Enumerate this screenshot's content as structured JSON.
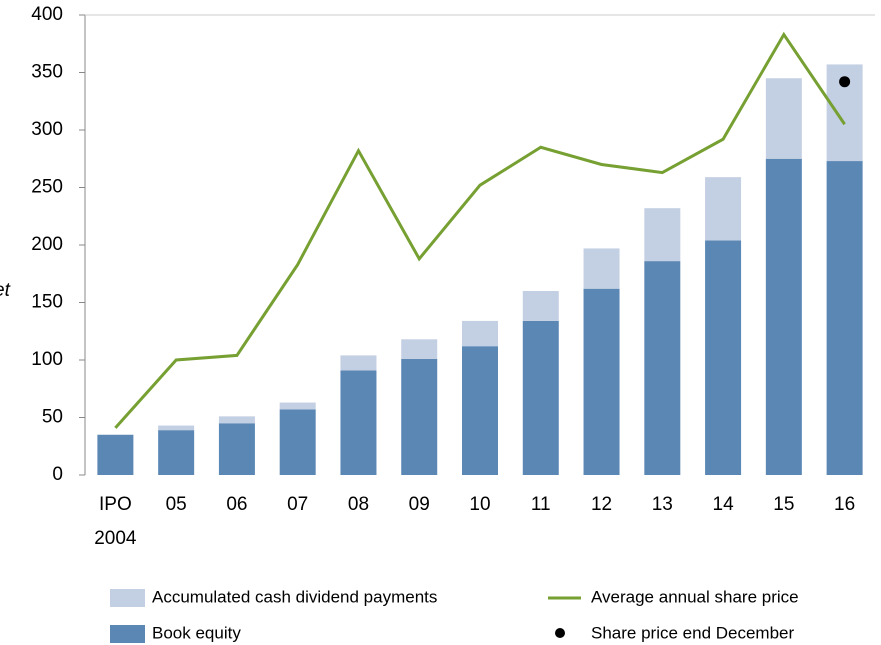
{
  "chart_data": {
    "type": "bar",
    "stacked": true,
    "axis_label": "et",
    "categories": [
      "IPO 2004",
      "05",
      "06",
      "07",
      "08",
      "09",
      "10",
      "11",
      "12",
      "13",
      "14",
      "15",
      "16"
    ],
    "series": [
      {
        "name": "Book equity",
        "kind": "bar",
        "color": "#5b87b5",
        "values": [
          35,
          39,
          45,
          57,
          91,
          101,
          112,
          134,
          162,
          186,
          204,
          275,
          273
        ]
      },
      {
        "name": "Accumulated cash dividend payments",
        "kind": "bar",
        "color": "#c3cfe2",
        "values": [
          0,
          4,
          6,
          6,
          13,
          17,
          22,
          26,
          35,
          46,
          55,
          70,
          84
        ]
      },
      {
        "name": "Average annual share price",
        "kind": "line",
        "color": "#77a033",
        "values": [
          41,
          100,
          104,
          183,
          282,
          188,
          252,
          285,
          270,
          263,
          292,
          383,
          305
        ]
      },
      {
        "name": "Share price end December",
        "kind": "point",
        "color": "#000000",
        "values": [
          null,
          null,
          null,
          null,
          null,
          null,
          null,
          null,
          null,
          null,
          null,
          null,
          342
        ]
      }
    ],
    "ylim": [
      0,
      400
    ],
    "yticks": [
      0,
      50,
      100,
      150,
      200,
      250,
      300,
      350,
      400
    ],
    "grid": false
  }
}
